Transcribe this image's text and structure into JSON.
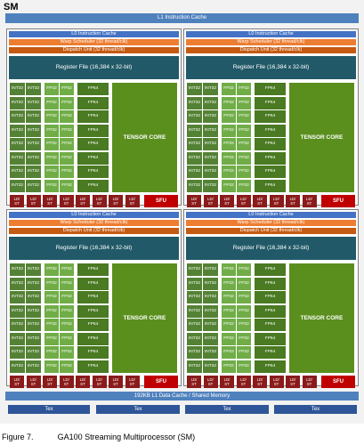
{
  "sm_label": "SM",
  "l1_instruction_cache": "L1 Instruction Cache",
  "partition": {
    "l0_cache": "L0 Instruction Cache",
    "warp_scheduler": "Warp Scheduler (32 thread/clk)",
    "dispatch_unit": "Dispatch Unit (32 thread/clk)",
    "register_file": "Register File (16,384 x 32-bit)",
    "int32": "INT32",
    "fp32": "FP32",
    "fp64": "FP64",
    "tensor_core": "TENSOR CORE",
    "ldst_line1": "LD/",
    "ldst_line2": "ST",
    "sfu": "SFU"
  },
  "l1_data_cache": "192KB L1 Data Cache / Shared Memory",
  "tex_units": [
    "Tex",
    "Tex",
    "Tex",
    "Tex"
  ],
  "caption": {
    "number": "Figure 7.",
    "text": "GA100 Streaming Multiprocessor (SM)"
  },
  "colors": {
    "int32": "#548235",
    "fp32": "#70ad47",
    "fp64": "#4a7a22",
    "tensor": "#5a8f1e",
    "ldst": "#8b1a1a",
    "sfu": "#c00000",
    "register_file": "#215968",
    "warp_scheduler": "#ed7d31",
    "dispatch_unit": "#c55a11"
  }
}
